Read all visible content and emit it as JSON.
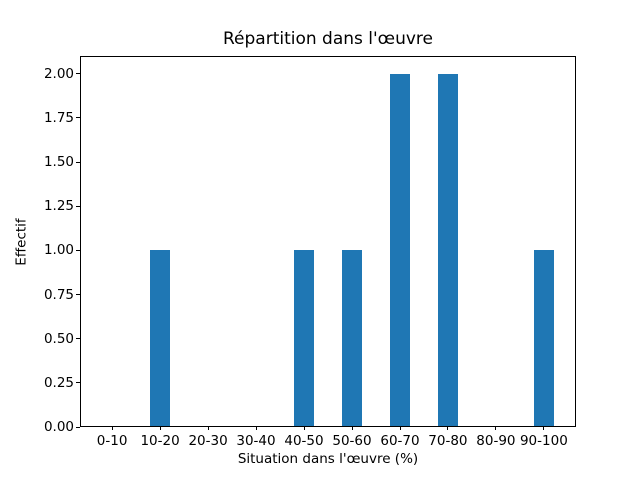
{
  "chart_data": {
    "type": "bar",
    "title": "Répartition dans l'œuvre",
    "xlabel": "Situation dans l'œuvre (%)",
    "ylabel": "Effectif",
    "categories": [
      "0-10",
      "10-20",
      "20-30",
      "30-40",
      "40-50",
      "50-60",
      "60-70",
      "70-80",
      "80-90",
      "90-100"
    ],
    "values": [
      0,
      1,
      0,
      0,
      1,
      1,
      2,
      2,
      0,
      1
    ],
    "ytick_labels": [
      "0.00",
      "0.25",
      "0.50",
      "0.75",
      "1.00",
      "1.25",
      "1.50",
      "1.75",
      "2.00"
    ],
    "ytick_values": [
      0,
      0.25,
      0.5,
      0.75,
      1.0,
      1.25,
      1.5,
      1.75,
      2.0
    ],
    "ylim": [
      0,
      2.1
    ],
    "xlim": [
      -0.67,
      9.67
    ],
    "bar_width_units": 0.42,
    "bar_color": "#1f77b4",
    "grid": false
  }
}
